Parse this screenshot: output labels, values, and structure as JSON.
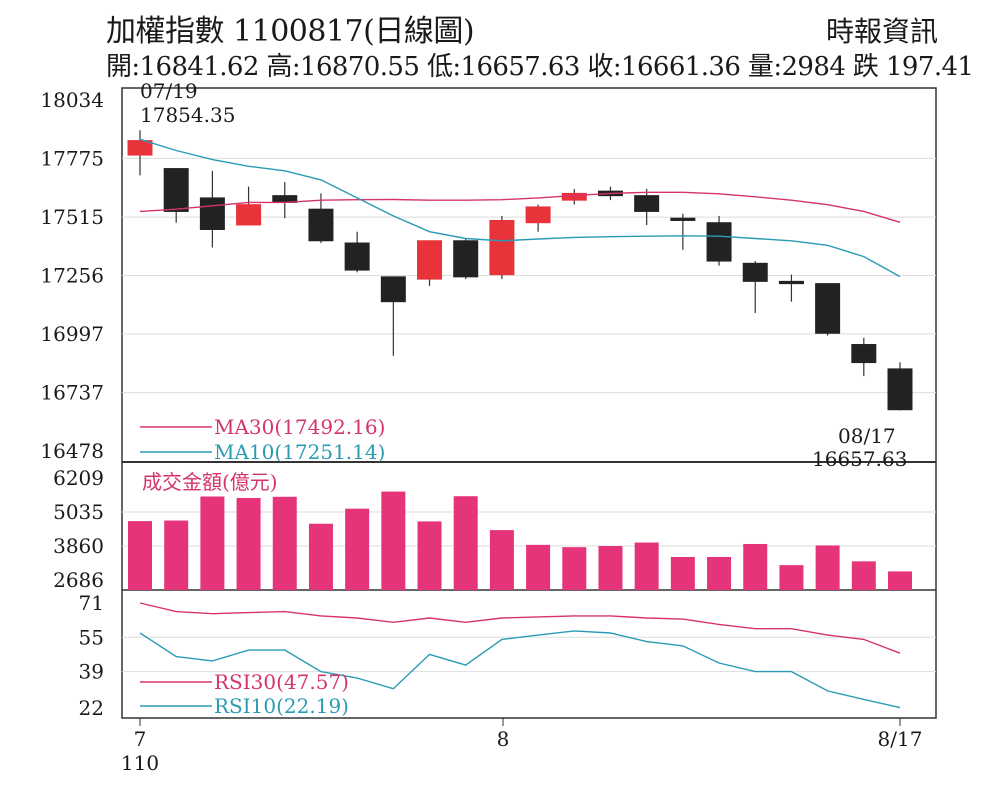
{
  "header": {
    "title": "加權指數 1100817(日線圖)",
    "source": "時報資訊",
    "ohlc_line": "開:16841.62 高:16870.55 低:16657.63 收:16661.36 量:2984 跌 197.41"
  },
  "colors": {
    "up": "#e8333b",
    "down": "#222222",
    "volume": "#e6347a",
    "ma30": "#d6336c",
    "ma10": "#2a9bb5",
    "grid": "#dddddd"
  },
  "chart_data": [
    {
      "type": "candlestick",
      "panel": "price",
      "yticks": [
        "18034",
        "17775",
        "17515",
        "17256",
        "16997",
        "16737",
        "16478"
      ],
      "ylim": [
        16478,
        18034
      ],
      "grid": true,
      "candles": [
        {
          "o": 17790,
          "h": 17900,
          "l": 17700,
          "c": 17854
        },
        {
          "o": 17730,
          "h": 17730,
          "l": 17490,
          "c": 17540
        },
        {
          "o": 17600,
          "h": 17720,
          "l": 17380,
          "c": 17460
        },
        {
          "o": 17480,
          "h": 17650,
          "l": 17480,
          "c": 17570
        },
        {
          "o": 17610,
          "h": 17670,
          "l": 17510,
          "c": 17580
        },
        {
          "o": 17550,
          "h": 17620,
          "l": 17400,
          "c": 17410
        },
        {
          "o": 17400,
          "h": 17450,
          "l": 17270,
          "c": 17280
        },
        {
          "o": 17250,
          "h": 17250,
          "l": 16900,
          "c": 17140
        },
        {
          "o": 17240,
          "h": 17400,
          "l": 17210,
          "c": 17410
        },
        {
          "o": 17410,
          "h": 17420,
          "l": 17240,
          "c": 17250
        },
        {
          "o": 17260,
          "h": 17520,
          "l": 17240,
          "c": 17500
        },
        {
          "o": 17490,
          "h": 17570,
          "l": 17450,
          "c": 17560
        },
        {
          "o": 17590,
          "h": 17640,
          "l": 17570,
          "c": 17620
        },
        {
          "o": 17630,
          "h": 17650,
          "l": 17590,
          "c": 17610
        },
        {
          "o": 17610,
          "h": 17640,
          "l": 17480,
          "c": 17540
        },
        {
          "o": 17510,
          "h": 17530,
          "l": 17370,
          "c": 17500
        },
        {
          "o": 17490,
          "h": 17520,
          "l": 17300,
          "c": 17320
        },
        {
          "o": 17310,
          "h": 17320,
          "l": 17090,
          "c": 17230
        },
        {
          "o": 17230,
          "h": 17260,
          "l": 17140,
          "c": 17220
        },
        {
          "o": 17220,
          "h": 17220,
          "l": 16990,
          "c": 17000
        },
        {
          "o": 16950,
          "h": 16980,
          "l": 16810,
          "c": 16870
        },
        {
          "o": 16842,
          "h": 16871,
          "l": 16658,
          "c": 16661
        }
      ],
      "ma30": [
        17540,
        17550,
        17565,
        17580,
        17580,
        17590,
        17592,
        17593,
        17590,
        17590,
        17592,
        17600,
        17610,
        17620,
        17625,
        17625,
        17618,
        17605,
        17590,
        17570,
        17540,
        17492
      ],
      "ma10": [
        17860,
        17810,
        17770,
        17740,
        17720,
        17680,
        17600,
        17520,
        17450,
        17420,
        17410,
        17418,
        17425,
        17428,
        17430,
        17432,
        17430,
        17420,
        17410,
        17390,
        17340,
        17251
      ],
      "annotations": [
        {
          "label": "07/19",
          "value": "17854.35"
        },
        {
          "label": "08/17",
          "value": "16657.63"
        }
      ],
      "legend": [
        "MA30(17492.16)",
        "MA10(17251.14)"
      ]
    },
    {
      "type": "bar",
      "panel": "volume",
      "title": "成交金額(億元)",
      "yticks": [
        "6209",
        "5035",
        "3860",
        "2686"
      ],
      "ylim": [
        2686,
        6209
      ],
      "values": [
        4720,
        4740,
        5570,
        5520,
        5560,
        4630,
        5150,
        5740,
        4710,
        5580,
        4410,
        3900,
        3820,
        3860,
        3980,
        3480,
        3480,
        3930,
        3200,
        3880,
        3330,
        2984
      ]
    },
    {
      "type": "line",
      "panel": "rsi",
      "yticks": [
        "71",
        "55",
        "39",
        "22"
      ],
      "ylim": [
        22,
        71
      ],
      "rsi30": [
        71,
        67,
        66,
        66.5,
        67,
        65,
        64,
        62,
        64,
        62,
        64,
        64.5,
        65,
        65,
        64,
        63.5,
        61,
        59,
        59,
        56,
        54,
        47.57
      ],
      "rsi10": [
        57,
        46,
        44,
        49,
        49,
        39,
        36,
        31,
        47,
        42,
        54,
        56,
        58,
        57,
        53,
        51,
        43,
        39,
        39,
        30,
        26,
        22.19
      ],
      "legend": [
        "RSI30(47.57)",
        "RSI10(22.19)"
      ]
    }
  ],
  "xaxis": {
    "labels": [
      "7",
      "8",
      "8/17"
    ],
    "sublabel": "110"
  }
}
